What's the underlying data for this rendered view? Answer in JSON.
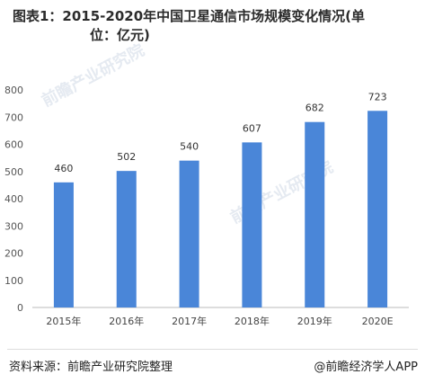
{
  "title_line1": "图表1：2015-2020年中国卫星通信市场规模变化情况(单",
  "title_line2": "位：亿元)",
  "footer": {
    "source": "资料来源：前瞻产业研究院整理",
    "credit": "@前瞻经济学人APP"
  },
  "watermarks": [
    "前瞻产业研究院",
    "前瞻产业研究院"
  ],
  "colors": {
    "bar": "#4a86d8",
    "grid": "#e3e3e3",
    "axis": "#bbbbbb"
  },
  "chart_data": {
    "type": "bar",
    "categories": [
      "2015年",
      "2016年",
      "2017年",
      "2018年",
      "2019年",
      "2020E"
    ],
    "values": [
      460,
      502,
      540,
      607,
      682,
      723
    ],
    "ylim": [
      0,
      800
    ],
    "yticks": [
      0,
      100,
      200,
      300,
      400,
      500,
      600,
      700,
      800
    ],
    "grid": false
  }
}
